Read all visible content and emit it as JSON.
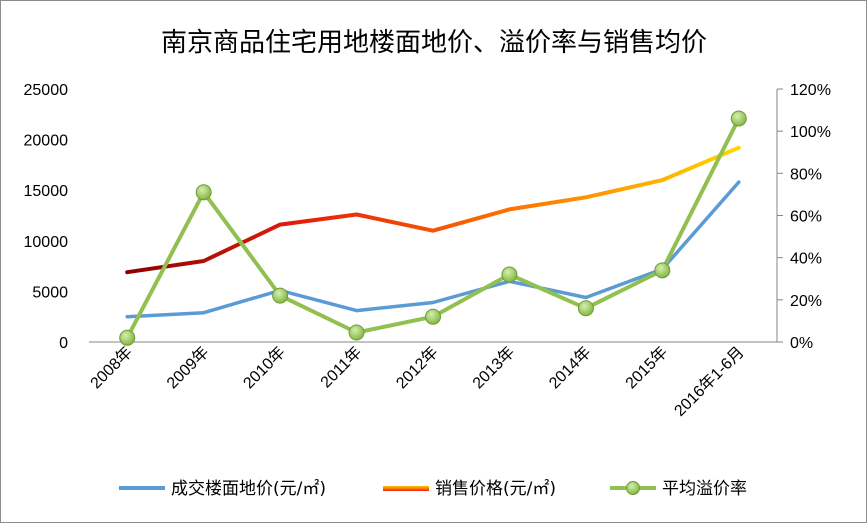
{
  "chart_data": {
    "type": "line",
    "title": "南京商品住宅用地楼面地价、溢价率与销售均价",
    "categories": [
      "2008年",
      "2009年",
      "2010年",
      "2011年",
      "2012年",
      "2013年",
      "2014年",
      "2015年",
      "2016年1-6月"
    ],
    "y_left": {
      "ticks": [
        "0",
        "5000",
        "10000",
        "15000",
        "20000",
        "25000"
      ],
      "ylim": [
        0,
        25000
      ]
    },
    "y_right": {
      "ticks": [
        "0%",
        "20%",
        "40%",
        "60%",
        "80%",
        "100%",
        "120%"
      ],
      "ylim": [
        0,
        120
      ]
    },
    "series": [
      {
        "name": "成交楼面地价(元/㎡)",
        "axis": "left",
        "color": "#5b9bd5",
        "values": [
          2500,
          2900,
          5100,
          3100,
          3900,
          6000,
          4400,
          7200,
          15800
        ]
      },
      {
        "name": "销售价格(元/㎡)",
        "axis": "left",
        "gradient": [
          "#8b0000",
          "#e8200c",
          "#ff7a00",
          "#ffe600"
        ],
        "values": [
          6900,
          8000,
          11600,
          12600,
          11000,
          13100,
          14300,
          16000,
          19200
        ]
      },
      {
        "name": "平均溢价率",
        "axis": "right",
        "color": "#92c050",
        "marker_color": "#a9d86e",
        "values": [
          2,
          71,
          22,
          4.5,
          12,
          32,
          16,
          34,
          106
        ]
      }
    ],
    "legend": {
      "position": "bottom",
      "labels": [
        "成交楼面地价(元/㎡)",
        "销售价格(元/㎡)",
        "平均溢价率"
      ]
    }
  }
}
